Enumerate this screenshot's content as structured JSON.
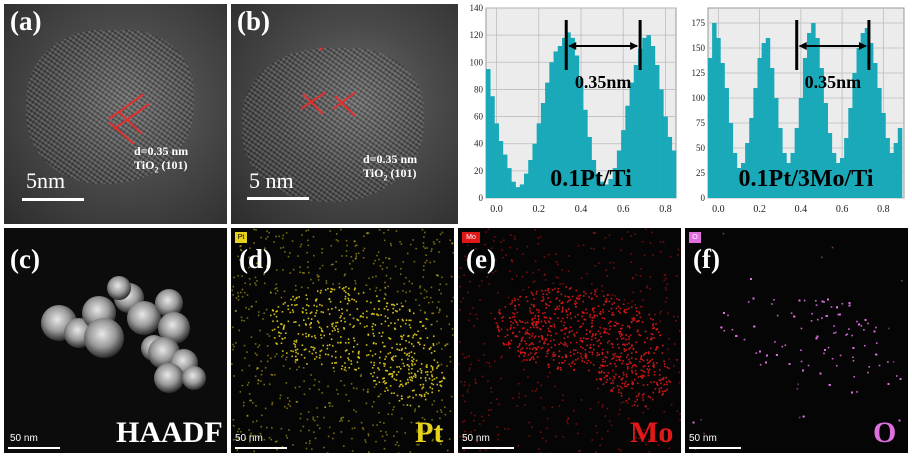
{
  "panels": {
    "a": {
      "label": "(a)",
      "scale": "5nm",
      "d_spacing": "d=0.35 nm",
      "plane": "TiO",
      "plane_sub": "2",
      "plane_hkl": " (101)"
    },
    "b": {
      "label": "(b)",
      "scale": "5 nm",
      "d_spacing": "d=0.35 nm",
      "plane": "TiO",
      "plane_sub": "2",
      "plane_hkl": " (101)"
    },
    "c": {
      "label": "(c)",
      "title": "HAADF",
      "scale": "50 nm"
    },
    "d": {
      "label": "(d)",
      "title": "Pt",
      "scale": "50 nm",
      "badge": "Pt"
    },
    "e": {
      "label": "(e)",
      "title": "Mo",
      "scale": "50 nm",
      "badge": "Mo"
    },
    "f": {
      "label": "(f)",
      "title": "O",
      "scale": "50 nm",
      "badge": "O"
    }
  },
  "colors": {
    "bar": "#1aa9b8",
    "pt": "#e6d21c",
    "mo": "#e01818",
    "o": "#e070e0",
    "lattice_marker": "#e03030",
    "grid": "#bdbdbd"
  },
  "chart_data": [
    {
      "type": "bar",
      "title": "",
      "annotation_label": "0.1Pt/Ti",
      "distance_label": "0.35nm",
      "marker_positions": [
        0.33,
        0.68
      ],
      "xlim": [
        -0.05,
        0.85
      ],
      "ylim": [
        0,
        140
      ],
      "xticks": [
        0.0,
        0.2,
        0.4,
        0.6,
        0.8
      ],
      "yticks": [
        0,
        20,
        40,
        60,
        80,
        100,
        120,
        140
      ],
      "x": [
        -0.04,
        -0.02,
        0.0,
        0.02,
        0.04,
        0.06,
        0.08,
        0.1,
        0.12,
        0.14,
        0.16,
        0.18,
        0.2,
        0.22,
        0.24,
        0.26,
        0.28,
        0.3,
        0.32,
        0.34,
        0.36,
        0.38,
        0.4,
        0.42,
        0.44,
        0.46,
        0.48,
        0.5,
        0.52,
        0.54,
        0.56,
        0.58,
        0.6,
        0.62,
        0.64,
        0.66,
        0.68,
        0.7,
        0.72,
        0.74,
        0.76,
        0.78,
        0.8,
        0.82,
        0.84
      ],
      "values": [
        95,
        75,
        55,
        42,
        32,
        22,
        12,
        8,
        10,
        18,
        28,
        40,
        55,
        70,
        85,
        100,
        108,
        112,
        118,
        122,
        118,
        105,
        88,
        65,
        45,
        28,
        18,
        12,
        10,
        14,
        22,
        35,
        50,
        68,
        85,
        98,
        110,
        118,
        120,
        112,
        98,
        80,
        60,
        45,
        35
      ]
    },
    {
      "type": "bar",
      "title": "",
      "annotation_label": "0.1Pt/3Mo/Ti",
      "distance_label": "0.35nm",
      "marker_positions": [
        0.38,
        0.73
      ],
      "xlim": [
        -0.05,
        0.9
      ],
      "ylim": [
        0,
        190
      ],
      "xticks": [
        0.0,
        0.2,
        0.4,
        0.6,
        0.8
      ],
      "yticks": [
        0,
        25,
        50,
        75,
        100,
        125,
        150,
        175
      ],
      "x": [
        -0.04,
        -0.02,
        0.0,
        0.02,
        0.04,
        0.06,
        0.08,
        0.1,
        0.12,
        0.14,
        0.16,
        0.18,
        0.2,
        0.22,
        0.24,
        0.26,
        0.28,
        0.3,
        0.32,
        0.34,
        0.36,
        0.38,
        0.4,
        0.42,
        0.44,
        0.46,
        0.48,
        0.5,
        0.52,
        0.54,
        0.56,
        0.58,
        0.6,
        0.62,
        0.64,
        0.66,
        0.68,
        0.7,
        0.72,
        0.74,
        0.76,
        0.78,
        0.8,
        0.82,
        0.84,
        0.86,
        0.88
      ],
      "values": [
        140,
        175,
        160,
        135,
        110,
        75,
        45,
        30,
        35,
        55,
        80,
        110,
        140,
        155,
        160,
        130,
        100,
        70,
        45,
        35,
        45,
        70,
        100,
        140,
        165,
        175,
        160,
        130,
        95,
        65,
        45,
        35,
        40,
        60,
        90,
        125,
        150,
        165,
        170,
        155,
        135,
        110,
        85,
        60,
        45,
        55,
        70
      ]
    }
  ]
}
